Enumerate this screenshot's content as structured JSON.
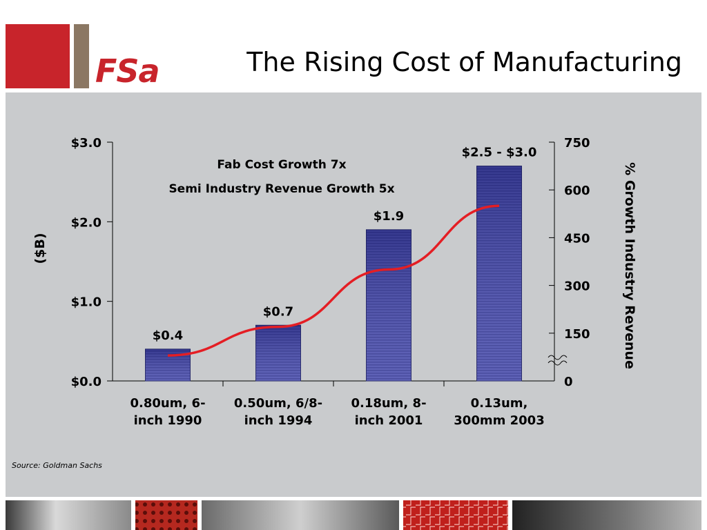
{
  "logo": {
    "text": "FSa"
  },
  "title": "The Rising Cost of Manufacturing",
  "source": "Source: Goldman Sachs",
  "colors": {
    "brand_red": "#c8242b",
    "brand_brown": "#8b7763",
    "panel": "#c9cbcd",
    "bar": "#3a3e9a",
    "line": "#e41e24"
  },
  "chart_data": {
    "type": "bar",
    "categories": [
      [
        "0.80um, 6-",
        "inch 1990"
      ],
      [
        "0.50um, 6/8-",
        "inch 1994"
      ],
      [
        "0.18um, 8-",
        "inch 2001"
      ],
      [
        "0.13um,",
        "300mm 2003"
      ]
    ],
    "ylabel": "($B)",
    "y2label": "% Growth Industry Revenue",
    "ylim": [
      0,
      3.0
    ],
    "y2lim": [
      0,
      750
    ],
    "yticks": [
      "$0.0",
      "$1.0",
      "$2.0",
      "$3.0"
    ],
    "y2ticks": [
      "0",
      "150",
      "300",
      "450",
      "600",
      "750"
    ],
    "series": [
      {
        "type": "bar",
        "axis": "left",
        "values": [
          0.4,
          0.7,
          1.9,
          2.7
        ],
        "labels": [
          "$0.4",
          "$0.7",
          "$1.9",
          "$2.5 - $3.0"
        ]
      },
      {
        "type": "line",
        "axis": "right",
        "values": [
          80,
          170,
          350,
          550
        ]
      }
    ],
    "annotations": [
      "Fab Cost Growth 7x",
      "Semi Industry Revenue Growth 5x"
    ]
  }
}
